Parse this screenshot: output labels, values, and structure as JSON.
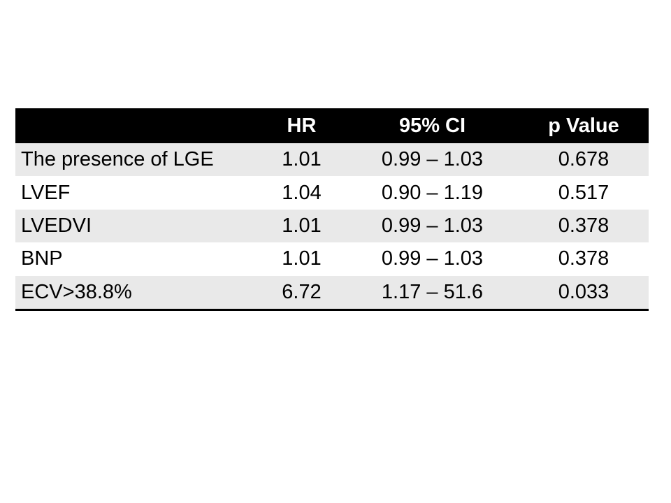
{
  "slide": {
    "background_color": "#ffffff"
  },
  "table": {
    "columns": [
      {
        "label": ""
      },
      {
        "label": "HR"
      },
      {
        "label": "95% CI"
      },
      {
        "label": "p Value"
      }
    ],
    "rows": [
      {
        "label": "The presence of LGE",
        "hr": "1.01",
        "ci": "0.99 – 1.03",
        "p": "0.678"
      },
      {
        "label": "LVEF",
        "hr": "1.04",
        "ci": "0.90 – 1.19",
        "p": "0.517"
      },
      {
        "label": "LVEDVI",
        "hr": "1.01",
        "ci": "0.99 – 1.03",
        "p": "0.378"
      },
      {
        "label": "BNP",
        "hr": "1.01",
        "ci": "0.99 – 1.03",
        "p": "0.378"
      },
      {
        "label": "ECV>38.8%",
        "hr": "6.72",
        "ci": "1.17 – 51.6",
        "p": "0.033"
      }
    ],
    "colors": {
      "header_bg": "#000000",
      "header_text": "#ffffff",
      "band_row_bg": "#e9e9e9",
      "plain_row_bg": "#ffffff",
      "body_text": "#000000",
      "bottom_border": "#000000"
    }
  }
}
